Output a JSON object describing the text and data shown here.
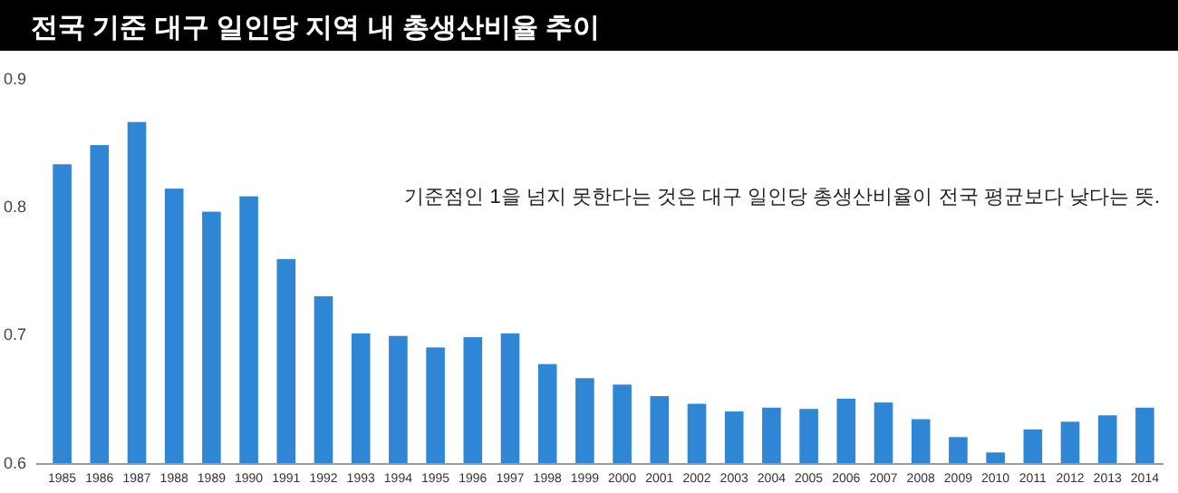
{
  "chart_data": {
    "type": "bar",
    "title": "전국 기준 대구 일인당 지역 내 총생산비율 추이",
    "categories": [
      "1985",
      "1986",
      "1987",
      "1988",
      "1989",
      "1990",
      "1991",
      "1992",
      "1993",
      "1994",
      "1995",
      "1996",
      "1997",
      "1998",
      "1999",
      "2000",
      "2001",
      "2002",
      "2003",
      "2004",
      "2005",
      "2006",
      "2007",
      "2008",
      "2009",
      "2010",
      "2011",
      "2012",
      "2013",
      "2014"
    ],
    "values": [
      0.834,
      0.849,
      0.867,
      0.815,
      0.797,
      0.809,
      0.76,
      0.731,
      0.702,
      0.7,
      0.691,
      0.699,
      0.702,
      0.678,
      0.667,
      0.662,
      0.653,
      0.647,
      0.641,
      0.644,
      0.643,
      0.651,
      0.648,
      0.635,
      0.621,
      0.609,
      0.627,
      0.633,
      0.638,
      0.644
    ],
    "color": "#2f86d4",
    "ylim": [
      0.6,
      0.9
    ],
    "yticks": [
      0.6,
      0.7,
      0.8,
      0.9
    ],
    "annotations": [
      "기준점인 1을 넘지 못한다는 것은 대구 일인당 총생산비율이 전국 평균보다 낮다는 뜻."
    ],
    "grid": false
  }
}
